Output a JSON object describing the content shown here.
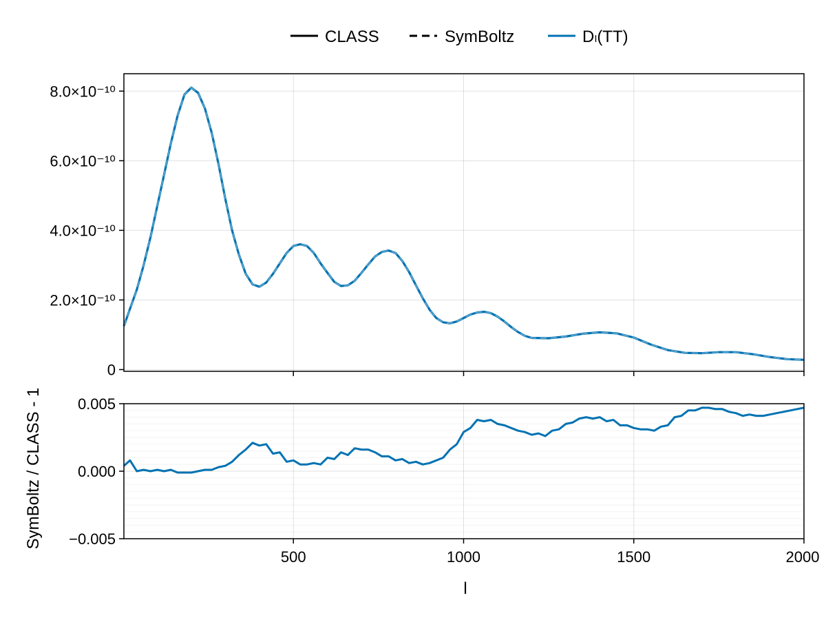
{
  "chart_data": [
    {
      "type": "line",
      "panel": "top",
      "title": "",
      "xlabel": "",
      "ylabel": "",
      "xlim": [
        2,
        2000
      ],
      "ylim": [
        -5e-12,
        8.5e-10
      ],
      "xticks": [
        500,
        1000,
        1500,
        2000
      ],
      "yticks": [
        0,
        2e-10,
        4e-10,
        6e-10,
        8e-10
      ],
      "ytick_labels": [
        "0",
        "2.0×10⁻¹⁰",
        "4.0×10⁻¹⁰",
        "6.0×10⁻¹⁰",
        "8.0×10⁻¹⁰"
      ],
      "grid": true,
      "legend": {
        "placement": "top-center, outside",
        "entries": [
          {
            "label": "CLASS",
            "style": "solid",
            "color": "#000000"
          },
          {
            "label": "SymBoltz",
            "style": "dashed",
            "color": "#000000"
          },
          {
            "label": "Dₗ(TT)",
            "style": "solid",
            "color": "#0072b2"
          }
        ]
      },
      "series": [
        {
          "name": "Dₗ(TT)",
          "color": "#0072b2",
          "x": [
            2,
            20,
            40,
            60,
            80,
            100,
            120,
            140,
            160,
            180,
            200,
            220,
            240,
            260,
            280,
            300,
            320,
            340,
            360,
            380,
            400,
            420,
            440,
            460,
            480,
            500,
            520,
            540,
            560,
            580,
            600,
            620,
            640,
            660,
            680,
            700,
            720,
            740,
            760,
            780,
            800,
            820,
            840,
            860,
            880,
            900,
            920,
            940,
            960,
            980,
            1000,
            1020,
            1040,
            1060,
            1080,
            1100,
            1120,
            1140,
            1160,
            1180,
            1200,
            1250,
            1300,
            1350,
            1400,
            1450,
            1500,
            1550,
            1600,
            1650,
            1700,
            1750,
            1800,
            1850,
            1900,
            1950,
            2000
          ],
          "y": [
            1.25e-10,
            1.75e-10,
            2.3e-10,
            3e-10,
            3.8e-10,
            4.7e-10,
            5.6e-10,
            6.5e-10,
            7.3e-10,
            7.9e-10,
            8.1e-10,
            7.95e-10,
            7.5e-10,
            6.8e-10,
            5.9e-10,
            4.9e-10,
            4e-10,
            3.3e-10,
            2.75e-10,
            2.45e-10,
            2.38e-10,
            2.5e-10,
            2.75e-10,
            3.05e-10,
            3.35e-10,
            3.55e-10,
            3.6e-10,
            3.55e-10,
            3.35e-10,
            3.05e-10,
            2.78e-10,
            2.52e-10,
            2.4e-10,
            2.42e-10,
            2.55e-10,
            2.78e-10,
            3.02e-10,
            3.25e-10,
            3.38e-10,
            3.42e-10,
            3.35e-10,
            3.12e-10,
            2.8e-10,
            2.42e-10,
            2.05e-10,
            1.72e-10,
            1.48e-10,
            1.36e-10,
            1.33e-10,
            1.38e-10,
            1.48e-10,
            1.58e-10,
            1.64e-10,
            1.66e-10,
            1.62e-10,
            1.52e-10,
            1.38e-10,
            1.22e-10,
            1.08e-10,
            9.7e-11,
            9.1e-11,
            9e-11,
            9.5e-11,
            1.03e-10,
            1.07e-10,
            1.04e-10,
            9.2e-11,
            7.2e-11,
            5.6e-11,
            4.8e-11,
            4.7e-11,
            5e-11,
            5e-11,
            4.4e-11,
            3.6e-11,
            3e-11,
            2.8e-11
          ]
        }
      ]
    },
    {
      "type": "line",
      "panel": "bottom",
      "title": "",
      "xlabel": "l",
      "ylabel": "SymBoltz / CLASS - 1",
      "xlim": [
        2,
        2000
      ],
      "ylim": [
        -0.005,
        0.005
      ],
      "xticks": [
        500,
        1000,
        1500,
        2000
      ],
      "xtick_labels": [
        "500",
        "1000",
        "1500",
        "2000"
      ],
      "yticks": [
        -0.005,
        0.0,
        0.005
      ],
      "ytick_labels": [
        "−0.005",
        "0.000",
        "0.005"
      ],
      "grid": true,
      "series": [
        {
          "color": "#0072b2",
          "x": [
            2,
            20,
            40,
            60,
            80,
            100,
            120,
            140,
            160,
            180,
            200,
            220,
            240,
            260,
            280,
            300,
            320,
            340,
            360,
            380,
            400,
            420,
            440,
            460,
            480,
            500,
            520,
            540,
            560,
            580,
            600,
            620,
            640,
            660,
            680,
            700,
            720,
            740,
            760,
            780,
            800,
            820,
            840,
            860,
            880,
            900,
            920,
            940,
            960,
            980,
            1000,
            1020,
            1040,
            1060,
            1080,
            1100,
            1120,
            1140,
            1160,
            1180,
            1200,
            1220,
            1240,
            1260,
            1280,
            1300,
            1320,
            1340,
            1360,
            1380,
            1400,
            1420,
            1440,
            1460,
            1480,
            1500,
            1520,
            1540,
            1560,
            1580,
            1600,
            1620,
            1640,
            1660,
            1680,
            1700,
            1720,
            1740,
            1760,
            1780,
            1800,
            1820,
            1840,
            1860,
            1880,
            1900,
            1920,
            1940,
            1960,
            1980,
            2000
          ],
          "y": [
            0.0004,
            0.0008,
            0.0,
            0.0001,
            0.0,
            0.0001,
            0.0,
            0.0001,
            -0.0001,
            -0.0001,
            -0.0001,
            0.0,
            0.0001,
            0.0001,
            0.0003,
            0.0004,
            0.0007,
            0.0012,
            0.0016,
            0.0021,
            0.0019,
            0.002,
            0.0013,
            0.0014,
            0.0007,
            0.0008,
            0.0005,
            0.0005,
            0.0006,
            0.0005,
            0.001,
            0.0009,
            0.0014,
            0.0012,
            0.0017,
            0.0016,
            0.0016,
            0.0014,
            0.0011,
            0.0011,
            0.0008,
            0.0009,
            0.0006,
            0.0007,
            0.0005,
            0.0006,
            0.0008,
            0.001,
            0.0016,
            0.002,
            0.0029,
            0.0032,
            0.0038,
            0.0037,
            0.0038,
            0.0035,
            0.0034,
            0.0032,
            0.003,
            0.0029,
            0.0027,
            0.0028,
            0.0026,
            0.003,
            0.0031,
            0.0035,
            0.0036,
            0.0039,
            0.004,
            0.0039,
            0.004,
            0.0037,
            0.0038,
            0.0034,
            0.0034,
            0.0032,
            0.0031,
            0.0031,
            0.003,
            0.0033,
            0.0034,
            0.004,
            0.0041,
            0.0045,
            0.0045,
            0.0047,
            0.0047,
            0.0046,
            0.0046,
            0.0044,
            0.0043,
            0.0041,
            0.0042,
            0.0041,
            0.0041,
            0.0042,
            0.0043,
            0.0044,
            0.0045,
            0.0046,
            0.0047
          ]
        }
      ]
    }
  ]
}
